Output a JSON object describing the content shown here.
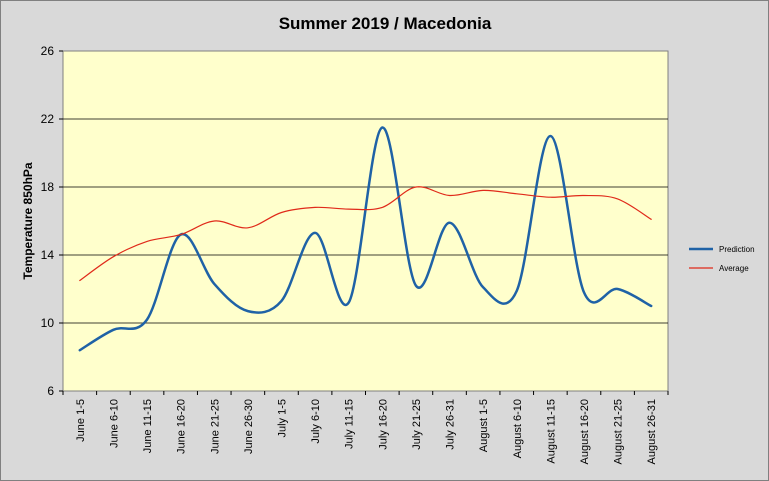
{
  "chart_data": {
    "type": "line",
    "title": "Summer 2019 / Macedonia",
    "xlabel": "",
    "ylabel": "Temperature 850hPa",
    "ylim": [
      6,
      26
    ],
    "yticks": [
      6,
      10,
      14,
      18,
      22,
      26
    ],
    "grid": true,
    "legend_position": "right",
    "categories": [
      "June 1-5",
      "June 6-10",
      "June 11-15",
      "June 16-20",
      "June 21-25",
      "June 26-30",
      "July 1-5",
      "July 6-10",
      "July 11-15",
      "July 16-20",
      "July 21-25",
      "July 26-31",
      "August 1-5",
      "August 6-10",
      "August 11-15",
      "August 16-20",
      "August 21-25",
      "August 26-31"
    ],
    "series": [
      {
        "name": "Prediction",
        "color": "#1f62a6",
        "values": [
          8.4,
          9.6,
          10.2,
          15.2,
          12.3,
          10.7,
          11.3,
          15.3,
          11.2,
          21.5,
          12.2,
          15.9,
          12.1,
          11.9,
          21.0,
          11.8,
          12.0,
          11.0
        ]
      },
      {
        "name": "Average",
        "color": "#e02a1a",
        "values": [
          12.5,
          13.9,
          14.8,
          15.2,
          16.0,
          15.6,
          16.5,
          16.8,
          16.7,
          16.8,
          18.0,
          17.5,
          17.8,
          17.6,
          17.4,
          17.5,
          17.3,
          16.1
        ]
      }
    ]
  }
}
